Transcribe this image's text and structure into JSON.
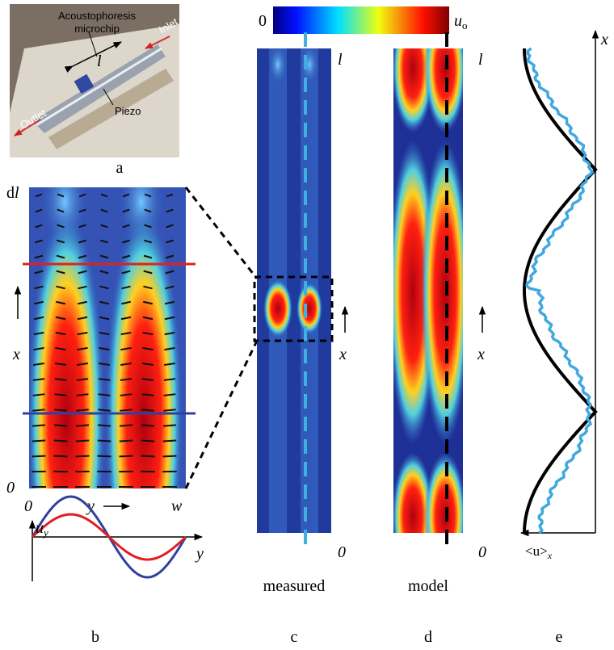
{
  "panel_a": {
    "chip": [
      "Acoustophoresis",
      "microchip"
    ],
    "inlet": "Inlet",
    "outlet": "Outlet",
    "length": "l",
    "piezo": "Piezo",
    "label": "a"
  },
  "colorbar": {
    "min": "0",
    "max": "u",
    "max_sub": "o"
  },
  "panel_b": {
    "top": "d",
    "top_italic": "l",
    "bottom": "0",
    "axis": "x",
    "y_start": "0",
    "y_label": "y",
    "y_end": "w",
    "plot_y": "u",
    "plot_y_sub": "y",
    "plot_x": "y",
    "label": "b"
  },
  "panel_c": {
    "top": "l",
    "axis": "x",
    "bottom": "0",
    "caption": "measured",
    "label": "c"
  },
  "panel_d": {
    "top": "l",
    "axis": "x",
    "bottom": "0",
    "caption": "model",
    "label": "d"
  },
  "panel_e": {
    "axis": "x",
    "value": "<u>",
    "value_sub": "x",
    "label": "e"
  }
}
